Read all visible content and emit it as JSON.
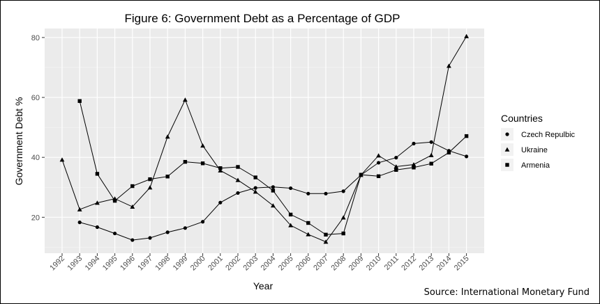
{
  "chart_data": {
    "type": "line",
    "title": "Figure 6: Government Debt as a Percentage of GDP",
    "xlabel": "Year",
    "ylabel": "Government Debt %",
    "x": [
      1992,
      1993,
      1994,
      1995,
      1996,
      1997,
      1998,
      1999,
      2000,
      2001,
      2002,
      2003,
      2004,
      2005,
      2006,
      2007,
      2008,
      2009,
      2010,
      2011,
      2012,
      2013,
      2014,
      2015
    ],
    "ylim": [
      8,
      83
    ],
    "yticks": [
      20,
      40,
      60,
      80
    ],
    "grid": true,
    "legend": {
      "title": "Countries",
      "position": "right"
    },
    "source": "Source: International Monetary Fund",
    "series": [
      {
        "name": "Czech Repulbic",
        "marker": "circle",
        "values": [
          null,
          18.3,
          16.7,
          14.6,
          12.4,
          13.1,
          15.0,
          16.4,
          18.5,
          24.9,
          28.1,
          29.8,
          30.1,
          29.7,
          27.9,
          27.9,
          28.7,
          34.1,
          38.2,
          39.9,
          44.6,
          45.1,
          42.2,
          40.3
        ]
      },
      {
        "name": "Ukraine",
        "marker": "triangle",
        "values": [
          39.2,
          22.6,
          24.8,
          26.2,
          23.5,
          29.9,
          46.9,
          59.2,
          43.9,
          35.6,
          32.4,
          28.5,
          23.9,
          17.3,
          14.3,
          11.8,
          19.9,
          34.1,
          40.6,
          36.9,
          37.6,
          40.7,
          70.5,
          80.4
        ]
      },
      {
        "name": "Armenia",
        "marker": "square",
        "values": [
          null,
          58.8,
          34.5,
          25.5,
          30.4,
          32.7,
          33.6,
          38.5,
          38.0,
          36.4,
          36.8,
          33.3,
          28.9,
          20.9,
          18.1,
          14.2,
          14.6,
          34.2,
          33.7,
          35.8,
          36.6,
          37.9,
          41.6,
          47.1
        ]
      }
    ]
  }
}
